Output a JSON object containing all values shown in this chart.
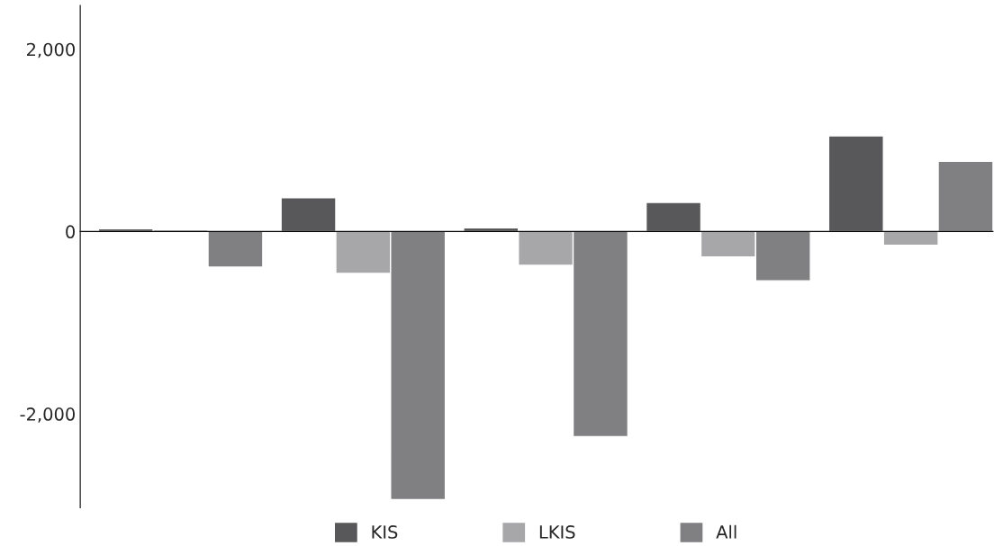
{
  "chart_data": {
    "type": "bar",
    "categories": [
      null,
      null,
      null,
      null,
      null
    ],
    "series": [
      {
        "name": "KIS",
        "color": "#58585a",
        "values": [
          30,
          370,
          40,
          320,
          1050
        ]
      },
      {
        "name": "LKIS",
        "color": "#a7a7a9",
        "values": [
          20,
          -460,
          -370,
          -280,
          -150
        ]
      },
      {
        "name": "All",
        "color": "#808083",
        "values": [
          -390,
          -2940,
          -2250,
          -540,
          770
        ]
      }
    ],
    "ylim": [
      -3030,
      2480
    ],
    "yticks": [
      {
        "value": -2000,
        "label": "-2,000"
      },
      0,
      {
        "value": 2000,
        "label": "2,000"
      }
    ],
    "legend": "bottom"
  }
}
